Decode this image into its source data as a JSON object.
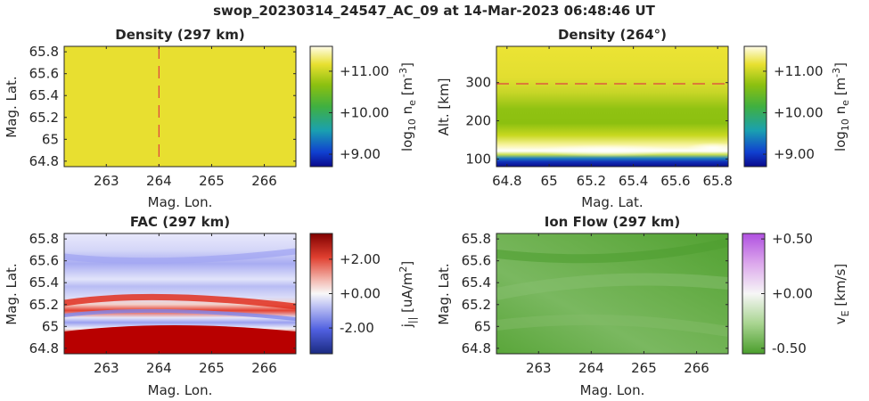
{
  "suptitle": "swop_20230314_24547_AC_09 at 14-Mar-2023 06:48:46 UT",
  "colors": {
    "density_yellow": "#e8e030",
    "density_green": "#8cc010",
    "fac_red": "#b00000",
    "fac_blue": "#7070ee",
    "ionflow_green": "#5aa63a",
    "ref_line": "#e04040"
  },
  "chart_data": [
    {
      "type": "heatmap",
      "title": "Density (297 km)",
      "xlabel": "Mag. Lon.",
      "ylabel": "Mag. Lat.",
      "xlim": [
        262.2,
        266.6
      ],
      "ylim": [
        64.75,
        65.85
      ],
      "x_ticks": [
        "263",
        "264",
        "265",
        "266"
      ],
      "y_ticks": [
        "64.8",
        "65",
        "65.2",
        "65.4",
        "65.6",
        "65.8"
      ],
      "ref_line": {
        "orientation": "vertical",
        "value": 264
      },
      "colorbar": {
        "label": "log10 ne [m-3]",
        "ticks": [
          "+9.00",
          "+10.00",
          "+11.00"
        ],
        "range": [
          8.7,
          11.6
        ],
        "colormap": "viridis-like blue-green-yellow"
      },
      "field_value": 11.3
    },
    {
      "type": "heatmap",
      "title": "Density (264°)",
      "xlabel": "Mag. Lat.",
      "ylabel": "Alt. [km]",
      "xlim": [
        64.75,
        65.85
      ],
      "ylim": [
        80,
        395
      ],
      "x_ticks": [
        "64.8",
        "65",
        "65.2",
        "65.4",
        "65.6",
        "65.8"
      ],
      "y_ticks": [
        "100",
        "200",
        "300"
      ],
      "ref_line": {
        "orientation": "horizontal",
        "value": 297
      },
      "colorbar": {
        "label": "log10 ne [m-3]",
        "ticks": [
          "+9.00",
          "+10.00",
          "+11.00"
        ],
        "range": [
          8.7,
          11.6
        ],
        "colormap": "viridis-like blue-green-yellow"
      },
      "altitude_profile": [
        {
          "alt": 80,
          "value": 8.8
        },
        {
          "alt": 100,
          "value": 9.3
        },
        {
          "alt": 115,
          "value": 11.6
        },
        {
          "alt": 135,
          "value": 11.3
        },
        {
          "alt": 170,
          "value": 10.8
        },
        {
          "alt": 200,
          "value": 10.5
        },
        {
          "alt": 240,
          "value": 10.8
        },
        {
          "alt": 300,
          "value": 11.3
        },
        {
          "alt": 395,
          "value": 11.4
        }
      ]
    },
    {
      "type": "heatmap",
      "title": "FAC (297 km)",
      "xlabel": "Mag. Lon.",
      "ylabel": "Mag. Lat.",
      "xlim": [
        262.2,
        266.6
      ],
      "ylim": [
        64.75,
        65.85
      ],
      "x_ticks": [
        "263",
        "264",
        "265",
        "266"
      ],
      "y_ticks": [
        "64.8",
        "65",
        "65.2",
        "65.4",
        "65.6",
        "65.8"
      ],
      "colorbar": {
        "label": "j|| [uA/m2]",
        "ticks": [
          "-2.00",
          "+0.00",
          "+2.00"
        ],
        "range": [
          -3.5,
          3.5
        ],
        "colormap": "blue-white-red"
      },
      "bands": [
        {
          "lat": 64.9,
          "value": 3.4
        },
        {
          "lat": 65.24,
          "value": 2.4
        },
        {
          "lat": 65.15,
          "value": -1.3
        },
        {
          "lat": 65.6,
          "value": -1.4
        },
        {
          "lat": 65.4,
          "value": -0.5
        }
      ]
    },
    {
      "type": "heatmap",
      "title": "Ion Flow (297 km)",
      "xlabel": "Mag. Lon.",
      "ylabel": "Mag. Lat.",
      "xlim": [
        262.2,
        266.6
      ],
      "ylim": [
        64.75,
        65.85
      ],
      "x_ticks": [
        "263",
        "264",
        "265",
        "266"
      ],
      "y_ticks": [
        "64.8",
        "65",
        "65.2",
        "65.4",
        "65.6",
        "65.8"
      ],
      "colorbar": {
        "label": "vE [km/s]",
        "ticks": [
          "-0.50",
          "+0.00",
          "+0.50"
        ],
        "range": [
          -0.55,
          0.55
        ],
        "colormap": "green-white-purple"
      },
      "field_value": -0.42
    }
  ]
}
